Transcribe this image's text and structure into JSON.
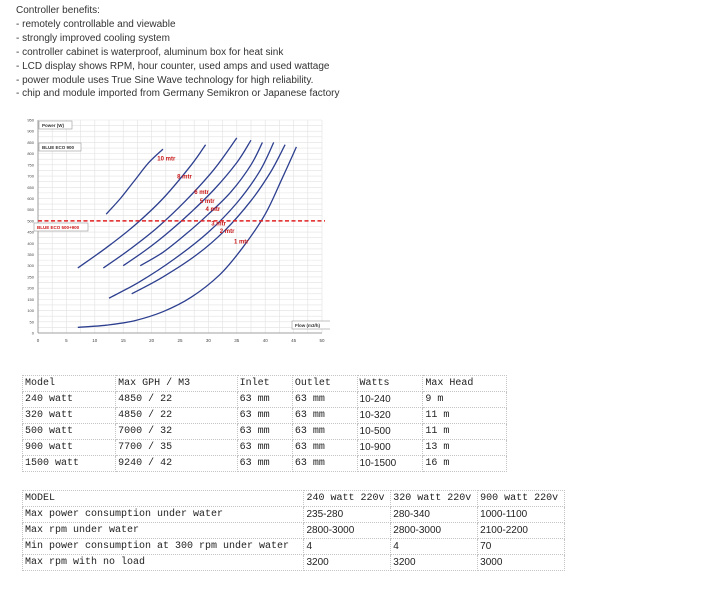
{
  "benefits": {
    "heading": "Controller benefits:",
    "items": [
      "- remotely controllable and viewable",
      "- strongly improved cooling system",
      "- controller cabinet is waterproof, aluminum box for heat sink",
      "- LCD display shows RPM, hour counter, used amps and used wattage",
      "- power module uses True Sine Wave technology for high reliability.",
      "- chip and module imported from Germany Semikron or Japanese factory"
    ]
  },
  "chart_data": {
    "type": "line",
    "ylabel": "Power (W)",
    "xlabel": "Flow (m3/h)",
    "xlim": [
      0,
      50
    ],
    "ylim": [
      0,
      950
    ],
    "x_ticks": [
      "0",
      "5",
      "10",
      "15",
      "20",
      "25",
      "30",
      "35",
      "40",
      "45",
      "50"
    ],
    "y_ticks": [
      "0",
      "50",
      "100",
      "150",
      "200",
      "250",
      "300",
      "350",
      "400",
      "450",
      "500",
      "550",
      "600",
      "650",
      "700",
      "750",
      "800",
      "850",
      "900",
      "950"
    ],
    "grid": true,
    "labels": {
      "upper_model": "BLUE ECO 900",
      "lower_model": "BLUE ECO 500+900"
    },
    "reference_line": {
      "y": 500,
      "color": "#e02020"
    },
    "curve_color": "#2d3f8f",
    "series": [
      {
        "name": "10 mtr",
        "x": [
          12,
          14.5,
          17,
          19.5,
          22
        ],
        "y": [
          530,
          600,
          680,
          760,
          820
        ]
      },
      {
        "name": "8 mtr",
        "x": [
          7,
          12,
          17,
          22,
          27,
          29.5
        ],
        "y": [
          290,
          380,
          480,
          600,
          750,
          840
        ]
      },
      {
        "name": "6 mtr",
        "x": [
          11.5,
          16,
          21,
          26,
          31,
          35
        ],
        "y": [
          290,
          370,
          470,
          590,
          730,
          870
        ]
      },
      {
        "name": "5 mtr",
        "x": [
          15,
          19,
          23,
          27,
          31,
          35,
          37.5
        ],
        "y": [
          300,
          370,
          450,
          540,
          640,
          760,
          860
        ]
      },
      {
        "name": "4 mtr",
        "x": [
          18,
          22,
          26,
          30,
          34,
          37.5,
          39.5
        ],
        "y": [
          300,
          360,
          440,
          530,
          630,
          750,
          850
        ]
      },
      {
        "name": "3 mtr",
        "x": [
          12.5,
          18,
          24,
          30,
          35,
          39,
          41.5
        ],
        "y": [
          155,
          230,
          330,
          450,
          580,
          720,
          850
        ]
      },
      {
        "name": "2 mtr",
        "x": [
          16.5,
          22,
          28,
          33,
          37.5,
          41,
          43.5
        ],
        "y": [
          175,
          250,
          350,
          460,
          590,
          720,
          840
        ]
      },
      {
        "name": "1 mtr",
        "x": [
          7,
          12,
          17,
          22,
          27,
          32,
          36,
          40,
          43,
          45.5
        ],
        "y": [
          25,
          35,
          55,
          95,
          160,
          260,
          380,
          530,
          690,
          830
        ]
      }
    ]
  },
  "table1": {
    "headers": [
      "Model",
      "Max GPH / M3",
      "Inlet",
      "Outlet",
      "Watts",
      "Max Head"
    ],
    "rows": [
      [
        "240 watt",
        "4850 / 22",
        "63 mm",
        "63 mm",
        "10-240",
        "9 m"
      ],
      [
        "320 watt",
        "4850 / 22",
        "63 mm",
        "63 mm",
        "10-320",
        "11 m"
      ],
      [
        "500 watt",
        "7000 / 32",
        "63 mm",
        "63 mm",
        "10-500",
        "11 m"
      ],
      [
        "900 watt",
        "7700 / 35",
        "63 mm",
        "63 mm",
        "10-900",
        "13 m"
      ],
      [
        "1500 watt",
        "9240 / 42",
        "63 mm",
        "63 mm",
        "10-1500",
        "16 m"
      ]
    ]
  },
  "table2": {
    "headers": [
      "MODEL",
      "240 watt 220v",
      "320 watt 220v",
      "900 watt 220v"
    ],
    "rows": [
      [
        "Max power consumption under water",
        "235-280",
        "280-340",
        "1000-1100"
      ],
      [
        "Max rpm under water",
        "2800-3000",
        "2800-3000",
        "2100-2200"
      ],
      [
        "Min power consumption at 300 rpm under water",
        "4",
        "4",
        "70"
      ],
      [
        "Max rpm with no load",
        "3200",
        "3200",
        "3000"
      ]
    ]
  }
}
